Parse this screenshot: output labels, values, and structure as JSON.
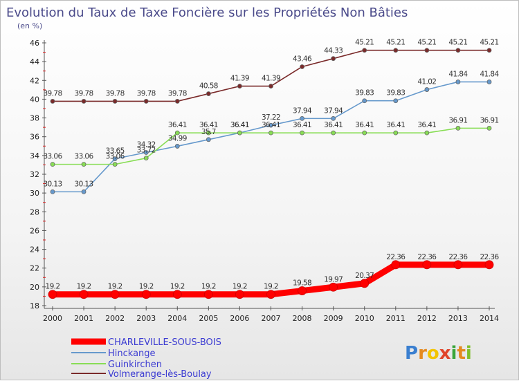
{
  "chart_data": {
    "type": "line",
    "title": "Evolution du Taux de Taxe Foncière sur les Propriétés Non Bâties",
    "subtitle": "(en %)",
    "xlabel": "",
    "ylabel": "(en %)",
    "x": [
      "2000",
      "2001",
      "2002",
      "2003",
      "2004",
      "2005",
      "2006",
      "2007",
      "2008",
      "2009",
      "2010",
      "2011",
      "2012",
      "2013",
      "2014"
    ],
    "ylim": [
      18,
      46
    ],
    "yticks": [
      "18",
      "20",
      "22",
      "24",
      "26",
      "28",
      "30",
      "32",
      "34",
      "36",
      "38",
      "40",
      "42",
      "44",
      "46"
    ],
    "grid": false,
    "legend": "bottom-left",
    "series": [
      {
        "name": "CHARLEVILLE-SOUS-BOIS",
        "color": "#ff0000",
        "values": [
          19.2,
          19.2,
          19.2,
          19.2,
          19.2,
          19.2,
          19.2,
          19.2,
          19.58,
          19.97,
          20.37,
          22.36,
          22.36,
          22.36,
          22.36
        ],
        "labels": [
          "19.2",
          "19.2",
          "19.2",
          "19.2",
          "19.2",
          "19.2",
          "19.2",
          "19.2",
          "19.58",
          "19.97",
          "20.37",
          "22.36",
          "22.36",
          "22.36",
          "22.36"
        ]
      },
      {
        "name": "Hinckange",
        "color": "#6699cc",
        "values": [
          30.13,
          30.13,
          33.65,
          34.32,
          34.99,
          35.7,
          36.41,
          37.22,
          37.94,
          37.94,
          39.83,
          39.83,
          41.02,
          41.84,
          41.84
        ],
        "labels": [
          "30.13",
          "30.13",
          "33.65",
          "34.32",
          "34.99",
          "35.7",
          "36.41",
          "37.22",
          "37.94",
          "37.94",
          "39.83",
          "39.83",
          "41.02",
          "41.84",
          "41.84"
        ]
      },
      {
        "name": "Guinkirchen",
        "color": "#88dd55",
        "values": [
          33.06,
          33.06,
          33.06,
          33.72,
          36.41,
          36.41,
          36.41,
          36.41,
          36.41,
          36.41,
          36.41,
          36.41,
          36.41,
          36.91,
          36.91
        ],
        "labels": [
          "33.06",
          "33.06",
          "33.06",
          "33.72",
          "36.41",
          "36.41",
          "36.41",
          "36.41",
          "36.41",
          "36.41",
          "36.41",
          "36.41",
          "36.41",
          "36.91",
          "36.91"
        ]
      },
      {
        "name": "Volmerange-lès-Boulay",
        "color": "#7a2a2a",
        "values": [
          39.78,
          39.78,
          39.78,
          39.78,
          39.78,
          40.58,
          41.39,
          41.39,
          43.46,
          44.33,
          45.21,
          45.21,
          45.21,
          45.21,
          45.21
        ],
        "labels": [
          "39.78",
          "39.78",
          "39.78",
          "39.78",
          "39.78",
          "40.58",
          "41.39",
          "41.39",
          "43.46",
          "44.33",
          "45.21",
          "45.21",
          "45.21",
          "45.21",
          "45.21"
        ]
      }
    ]
  },
  "brand": {
    "letters": [
      "P",
      "r",
      "o",
      "x",
      "i",
      "t",
      "i"
    ],
    "colors": [
      "#3a7fd0",
      "#e58a1f",
      "#f2c400",
      "#e0442a",
      "#3aa53a",
      "#e58a1f",
      "#7fbf2a"
    ]
  }
}
